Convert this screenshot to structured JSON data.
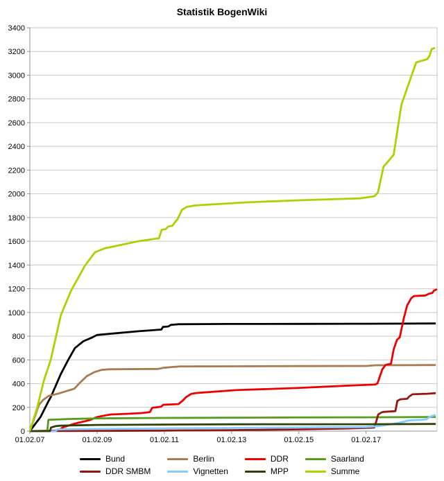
{
  "chart_data": {
    "type": "line",
    "title": "Statistik BogenWiki",
    "grid": "horizontal",
    "legend_position": "bottom",
    "background_color": "#ffffff",
    "grid_color": "#c9c9c9",
    "axis_color": "#8f8f8f",
    "x_axis": {
      "range": [
        2007.08,
        2019.19
      ],
      "ticks": [
        {
          "label": "01.02.07",
          "x": 2007.08
        },
        {
          "label": "01.02.09",
          "x": 2009.08
        },
        {
          "label": "01.02.11",
          "x": 2011.08
        },
        {
          "label": "01.02.13",
          "x": 2013.08
        },
        {
          "label": "01.02.15",
          "x": 2015.08
        },
        {
          "label": "01.02.17",
          "x": 2017.08
        }
      ]
    },
    "y_axis": {
      "range": [
        0,
        3400
      ],
      "tick_values": [
        0,
        200,
        400,
        600,
        800,
        1000,
        1200,
        1400,
        1600,
        1800,
        2000,
        2200,
        2400,
        2600,
        2800,
        3000,
        3200,
        3400
      ]
    },
    "series": [
      {
        "name": "Bund",
        "color": "#000000",
        "points": [
          [
            2007.08,
            0
          ],
          [
            2007.4,
            120
          ],
          [
            2007.64,
            255
          ],
          [
            2007.7,
            285
          ],
          [
            2008.0,
            480
          ],
          [
            2008.22,
            600
          ],
          [
            2008.42,
            700
          ],
          [
            2008.67,
            757
          ],
          [
            2008.94,
            790
          ],
          [
            2009.08,
            810
          ],
          [
            2009.64,
            825
          ],
          [
            2010.32,
            842
          ],
          [
            2010.99,
            856
          ],
          [
            2011.04,
            878
          ],
          [
            2011.2,
            882
          ],
          [
            2011.27,
            895
          ],
          [
            2011.5,
            901
          ],
          [
            2013.0,
            903
          ],
          [
            2015.0,
            904
          ],
          [
            2017.08,
            905
          ],
          [
            2019.15,
            907
          ]
        ]
      },
      {
        "name": "Berlin",
        "color": "#a87c50",
        "points": [
          [
            2007.08,
            0
          ],
          [
            2007.35,
            220
          ],
          [
            2007.47,
            262
          ],
          [
            2007.64,
            296
          ],
          [
            2007.95,
            318
          ],
          [
            2008.2,
            340
          ],
          [
            2008.4,
            357
          ],
          [
            2008.56,
            405
          ],
          [
            2008.77,
            462
          ],
          [
            2009.0,
            497
          ],
          [
            2009.2,
            515
          ],
          [
            2009.42,
            521
          ],
          [
            2010.9,
            524
          ],
          [
            2011.03,
            533
          ],
          [
            2011.35,
            541
          ],
          [
            2011.55,
            545
          ],
          [
            2013.0,
            546
          ],
          [
            2015.0,
            548
          ],
          [
            2017.1,
            549
          ],
          [
            2017.35,
            555
          ],
          [
            2019.15,
            557
          ]
        ]
      },
      {
        "name": "DDR",
        "color": "#ee0000",
        "points": [
          [
            2007.08,
            0
          ],
          [
            2007.95,
            5
          ],
          [
            2008.05,
            30
          ],
          [
            2008.4,
            62
          ],
          [
            2008.7,
            82
          ],
          [
            2008.85,
            92
          ],
          [
            2009.08,
            118
          ],
          [
            2009.35,
            134
          ],
          [
            2009.5,
            140
          ],
          [
            2010.0,
            146
          ],
          [
            2010.4,
            152
          ],
          [
            2010.65,
            160
          ],
          [
            2010.72,
            196
          ],
          [
            2010.98,
            205
          ],
          [
            2011.05,
            222
          ],
          [
            2011.5,
            228
          ],
          [
            2011.63,
            257
          ],
          [
            2011.72,
            285
          ],
          [
            2011.88,
            314
          ],
          [
            2012.0,
            320
          ],
          [
            2013.2,
            345
          ],
          [
            2015.0,
            363
          ],
          [
            2016.9,
            388
          ],
          [
            2017.35,
            392
          ],
          [
            2017.42,
            403
          ],
          [
            2017.5,
            470
          ],
          [
            2017.56,
            520
          ],
          [
            2017.66,
            558
          ],
          [
            2017.82,
            568
          ],
          [
            2017.9,
            690
          ],
          [
            2018.0,
            770
          ],
          [
            2018.08,
            790
          ],
          [
            2018.2,
            950
          ],
          [
            2018.3,
            1060
          ],
          [
            2018.42,
            1120
          ],
          [
            2018.5,
            1138
          ],
          [
            2018.85,
            1143
          ],
          [
            2018.95,
            1158
          ],
          [
            2019.05,
            1165
          ],
          [
            2019.1,
            1185
          ],
          [
            2019.19,
            1195
          ]
        ]
      },
      {
        "name": "Saarland",
        "color": "#579d1c",
        "points": [
          [
            2007.08,
            0
          ],
          [
            2007.6,
            0
          ],
          [
            2007.63,
            95
          ],
          [
            2008.3,
            102
          ],
          [
            2009.08,
            107
          ],
          [
            2011.0,
            111
          ],
          [
            2013.0,
            113
          ],
          [
            2015.0,
            115
          ],
          [
            2017.08,
            116
          ],
          [
            2019.15,
            119
          ]
        ]
      },
      {
        "name": "DDR SMBM",
        "color": "#97150d",
        "points": [
          [
            2007.08,
            0
          ],
          [
            2009.0,
            2
          ],
          [
            2011.0,
            4
          ],
          [
            2013.0,
            8
          ],
          [
            2015.0,
            14
          ],
          [
            2016.5,
            22
          ],
          [
            2017.2,
            28
          ],
          [
            2017.32,
            30
          ],
          [
            2017.38,
            80
          ],
          [
            2017.44,
            140
          ],
          [
            2017.54,
            158
          ],
          [
            2017.6,
            162
          ],
          [
            2017.95,
            168
          ],
          [
            2018.01,
            255
          ],
          [
            2018.1,
            268
          ],
          [
            2018.3,
            272
          ],
          [
            2018.36,
            292
          ],
          [
            2018.46,
            310
          ],
          [
            2018.9,
            315
          ],
          [
            2019.15,
            320
          ]
        ]
      },
      {
        "name": "Vignetten",
        "color": "#83caff",
        "points": [
          [
            2007.08,
            0
          ],
          [
            2007.85,
            0
          ],
          [
            2007.9,
            14
          ],
          [
            2009.08,
            18
          ],
          [
            2011.0,
            22
          ],
          [
            2013.0,
            26
          ],
          [
            2015.0,
            30
          ],
          [
            2017.08,
            34
          ],
          [
            2017.45,
            42
          ],
          [
            2017.75,
            55
          ],
          [
            2018.06,
            70
          ],
          [
            2018.33,
            88
          ],
          [
            2018.45,
            92
          ],
          [
            2018.75,
            95
          ],
          [
            2018.88,
            100
          ],
          [
            2018.95,
            117
          ],
          [
            2019.05,
            128
          ],
          [
            2019.15,
            135
          ]
        ]
      },
      {
        "name": "MPP",
        "color": "#314004",
        "points": [
          [
            2007.08,
            0
          ],
          [
            2007.68,
            0
          ],
          [
            2007.71,
            30
          ],
          [
            2007.85,
            42
          ],
          [
            2008.0,
            46
          ],
          [
            2009.08,
            52
          ],
          [
            2011.0,
            55
          ],
          [
            2013.0,
            57
          ],
          [
            2015.0,
            58
          ],
          [
            2017.08,
            58
          ],
          [
            2019.15,
            60
          ]
        ]
      },
      {
        "name": "Summe",
        "color": "#aecf00",
        "points": [
          [
            2007.08,
            0
          ],
          [
            2007.3,
            200
          ],
          [
            2007.5,
            430
          ],
          [
            2007.7,
            600
          ],
          [
            2008.0,
            975
          ],
          [
            2008.3,
            1180
          ],
          [
            2008.72,
            1395
          ],
          [
            2009.02,
            1508
          ],
          [
            2009.3,
            1540
          ],
          [
            2010.3,
            1600
          ],
          [
            2010.92,
            1625
          ],
          [
            2011.0,
            1697
          ],
          [
            2011.12,
            1702
          ],
          [
            2011.2,
            1725
          ],
          [
            2011.32,
            1730
          ],
          [
            2011.38,
            1755
          ],
          [
            2011.48,
            1790
          ],
          [
            2011.6,
            1865
          ],
          [
            2011.75,
            1890
          ],
          [
            2012.0,
            1902
          ],
          [
            2013.5,
            1928
          ],
          [
            2015.0,
            1945
          ],
          [
            2016.9,
            1962
          ],
          [
            2017.33,
            1980
          ],
          [
            2017.43,
            2010
          ],
          [
            2017.6,
            2230
          ],
          [
            2017.66,
            2248
          ],
          [
            2017.9,
            2330
          ],
          [
            2018.1,
            2700
          ],
          [
            2018.14,
            2760
          ],
          [
            2018.57,
            3108
          ],
          [
            2018.9,
            3135
          ],
          [
            2018.97,
            3165
          ],
          [
            2019.03,
            3220
          ],
          [
            2019.13,
            3230
          ]
        ]
      }
    ]
  }
}
